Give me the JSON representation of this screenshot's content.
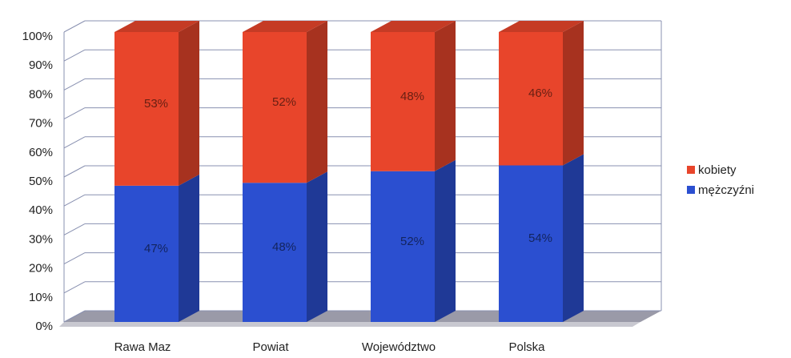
{
  "chart_data": {
    "type": "bar",
    "stacked": true,
    "categories": [
      "Rawa Maz",
      "Powiat",
      "Województwo",
      "Polska"
    ],
    "series": [
      {
        "name": "mężczyźni",
        "color": "#2b4fd0",
        "values": [
          47,
          48,
          52,
          54
        ],
        "value_labels": [
          "47%",
          "48%",
          "52%",
          "54%"
        ]
      },
      {
        "name": "kobiety",
        "color": "#e8452b",
        "values": [
          53,
          52,
          48,
          46
        ],
        "value_labels": [
          "53%",
          "52%",
          "48%",
          "46%"
        ]
      }
    ],
    "ylim": [
      0,
      100
    ],
    "yticks": [
      {
        "value": 0,
        "label": "0%"
      },
      {
        "value": 10,
        "label": "10%"
      },
      {
        "value": 20,
        "label": "20%"
      },
      {
        "value": 30,
        "label": "30%"
      },
      {
        "value": 40,
        "label": "40%"
      },
      {
        "value": 50,
        "label": "50%"
      },
      {
        "value": 60,
        "label": "60%"
      },
      {
        "value": 70,
        "label": "70%"
      },
      {
        "value": 80,
        "label": "80%"
      },
      {
        "value": 90,
        "label": "90%"
      },
      {
        "value": 100,
        "label": "100%"
      }
    ],
    "grid": true,
    "legend": "right"
  }
}
